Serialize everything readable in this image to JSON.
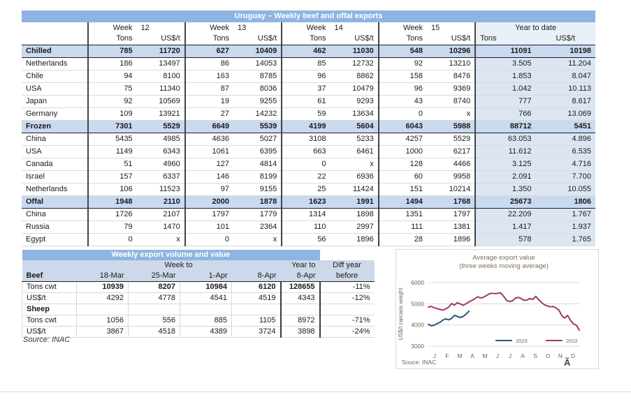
{
  "main_table": {
    "title": "Uruguay – Weekly beef and offal exports",
    "week_word": "Week",
    "weeks": [
      "12",
      "13",
      "14",
      "15"
    ],
    "ytd_label": "Year to date",
    "tons_label": "Tons",
    "usd_label": "US$/t",
    "rows": [
      {
        "label": "Chilled",
        "section": true,
        "values": [
          "785",
          "11720",
          "627",
          "10409",
          "462",
          "11030",
          "548",
          "10296",
          "11091",
          "10198"
        ]
      },
      {
        "label": "Netherlands",
        "section": false,
        "values": [
          "186",
          "13497",
          "86",
          "14053",
          "85",
          "12732",
          "92",
          "13210",
          "3.505",
          "11.204"
        ]
      },
      {
        "label": "Chile",
        "section": false,
        "values": [
          "94",
          "8100",
          "163",
          "8785",
          "96",
          "8862",
          "158",
          "8476",
          "1.853",
          "8.047"
        ]
      },
      {
        "label": "USA",
        "section": false,
        "values": [
          "75",
          "11340",
          "87",
          "8036",
          "37",
          "10479",
          "96",
          "9369",
          "1.042",
          "10.113"
        ]
      },
      {
        "label": "Japan",
        "section": false,
        "values": [
          "92",
          "10569",
          "19",
          "9255",
          "61",
          "9293",
          "43",
          "8740",
          "777",
          "8.617"
        ]
      },
      {
        "label": "Germany",
        "section": false,
        "values": [
          "109",
          "13921",
          "27",
          "14232",
          "59",
          "13634",
          "0",
          "x",
          "766",
          "13.069"
        ]
      },
      {
        "label": "Frozen",
        "section": true,
        "values": [
          "7301",
          "5529",
          "6649",
          "5539",
          "4199",
          "5604",
          "6043",
          "5988",
          "88712",
          "5451"
        ]
      },
      {
        "label": "China",
        "section": false,
        "values": [
          "5435",
          "4985",
          "4636",
          "5027",
          "3108",
          "5233",
          "4257",
          "5529",
          "63.053",
          "4.896"
        ]
      },
      {
        "label": "USA",
        "section": false,
        "values": [
          "1149",
          "6343",
          "1061",
          "6395",
          "663",
          "6461",
          "1000",
          "6217",
          "11.612",
          "6.535"
        ]
      },
      {
        "label": "Canada",
        "section": false,
        "values": [
          "51",
          "4960",
          "127",
          "4814",
          "0",
          "x",
          "128",
          "4466",
          "3.125",
          "4.716"
        ]
      },
      {
        "label": "Israel",
        "section": false,
        "values": [
          "157",
          "6337",
          "146",
          "8199",
          "22",
          "6936",
          "60",
          "9958",
          "2.091",
          "7.700"
        ]
      },
      {
        "label": "Netherlands",
        "section": false,
        "values": [
          "106",
          "11523",
          "97",
          "9155",
          "25",
          "11424",
          "151",
          "10214",
          "1.350",
          "10.055"
        ]
      },
      {
        "label": "Offal",
        "section": true,
        "values": [
          "1948",
          "2110",
          "2000",
          "1878",
          "1623",
          "1991",
          "1494",
          "1768",
          "25673",
          "1806"
        ]
      },
      {
        "label": "China",
        "section": false,
        "values": [
          "1726",
          "2107",
          "1797",
          "1779",
          "1314",
          "1898",
          "1351",
          "1797",
          "22.209",
          "1.767"
        ]
      },
      {
        "label": "Russia",
        "section": false,
        "values": [
          "79",
          "1470",
          "101",
          "2364",
          "110",
          "2997",
          "111",
          "1381",
          "1.417",
          "1.937"
        ]
      },
      {
        "label": "Egypt",
        "section": false,
        "values": [
          "0",
          "x",
          "0",
          "x",
          "56",
          "1896",
          "28",
          "1896",
          "578",
          "1.765"
        ]
      }
    ]
  },
  "weekly_table": {
    "title": "Weekly export volume and value",
    "week_to": "Week to",
    "year_to": "Year to",
    "diff_top": "Diff year",
    "diff_bottom": "before",
    "beef_label": "Beef",
    "date_cols": [
      "18-Mar",
      "25-Mar",
      "1-Apr",
      "8-Apr"
    ],
    "ytd_col": "8-Apr",
    "rows": [
      {
        "label": "Tons cwt",
        "section": false,
        "bold_values": true,
        "values": [
          "10939",
          "8207",
          "10984",
          "6120",
          "128655",
          "-11%"
        ]
      },
      {
        "label": "US$/t",
        "section": false,
        "bold_values": false,
        "values": [
          "4292",
          "4778",
          "4541",
          "4519",
          "4343",
          "-12%"
        ]
      },
      {
        "label": "Sheep",
        "section": true,
        "bold_values": false,
        "values": [
          "",
          "",
          "",
          "",
          "",
          ""
        ]
      },
      {
        "label": "Tons cwt",
        "section": false,
        "bold_values": false,
        "values": [
          "1056",
          "556",
          "885",
          "1105",
          "8972",
          "-71%"
        ]
      },
      {
        "label": "US$/t",
        "section": false,
        "bold_values": false,
        "values": [
          "3867",
          "4518",
          "4389",
          "3724",
          "3898",
          "-24%"
        ]
      }
    ],
    "source": "Source: INAC"
  },
  "chart_data": {
    "type": "line",
    "title": "Average export  value",
    "subtitle": "(three weeks moving average)",
    "ylabel": "US$/t carcass weight",
    "ylim": [
      3000,
      6000
    ],
    "yticks": [
      6000,
      5000,
      4000,
      3000
    ],
    "grid": "horizontal",
    "x_months": [
      "J",
      "F",
      "M",
      "A",
      "M",
      "J",
      "J",
      "A",
      "S",
      "O",
      "N",
      "D"
    ],
    "legend_position": "bottom-inside",
    "source": "Souce: INAC",
    "corner_glyph": "Ã",
    "series": [
      {
        "name": "2023",
        "color": "#27577d",
        "start_week": 1,
        "values": [
          4030,
          3960,
          3990,
          4060,
          4120,
          4230,
          4290,
          4240,
          4310,
          4450,
          4400,
          4350,
          4400,
          4510,
          4650
        ]
      },
      {
        "name": "2022",
        "color": "#9d3a66",
        "start_week": 1,
        "values": [
          4840,
          4880,
          4810,
          4770,
          4730,
          4700,
          4760,
          4840,
          5010,
          4940,
          5050,
          4990,
          4930,
          5000,
          5090,
          5160,
          5240,
          5330,
          5270,
          5310,
          5390,
          5470,
          5500,
          5480,
          5500,
          5510,
          5340,
          5150,
          5110,
          5140,
          5270,
          5300,
          5250,
          5160,
          5180,
          5250,
          5210,
          5350,
          5200,
          5060,
          4950,
          4900,
          4860,
          4870,
          4800,
          4700,
          4430,
          4330,
          4450,
          4210,
          4050,
          3990,
          3750
        ]
      }
    ],
    "colors": {
      "title_bar_blue": "#8eb4e2",
      "section_blue": "#c9daf0",
      "ytd_blue": "#dce6f2",
      "line_2023": "#27577d",
      "line_2022": "#9d3a66"
    }
  }
}
